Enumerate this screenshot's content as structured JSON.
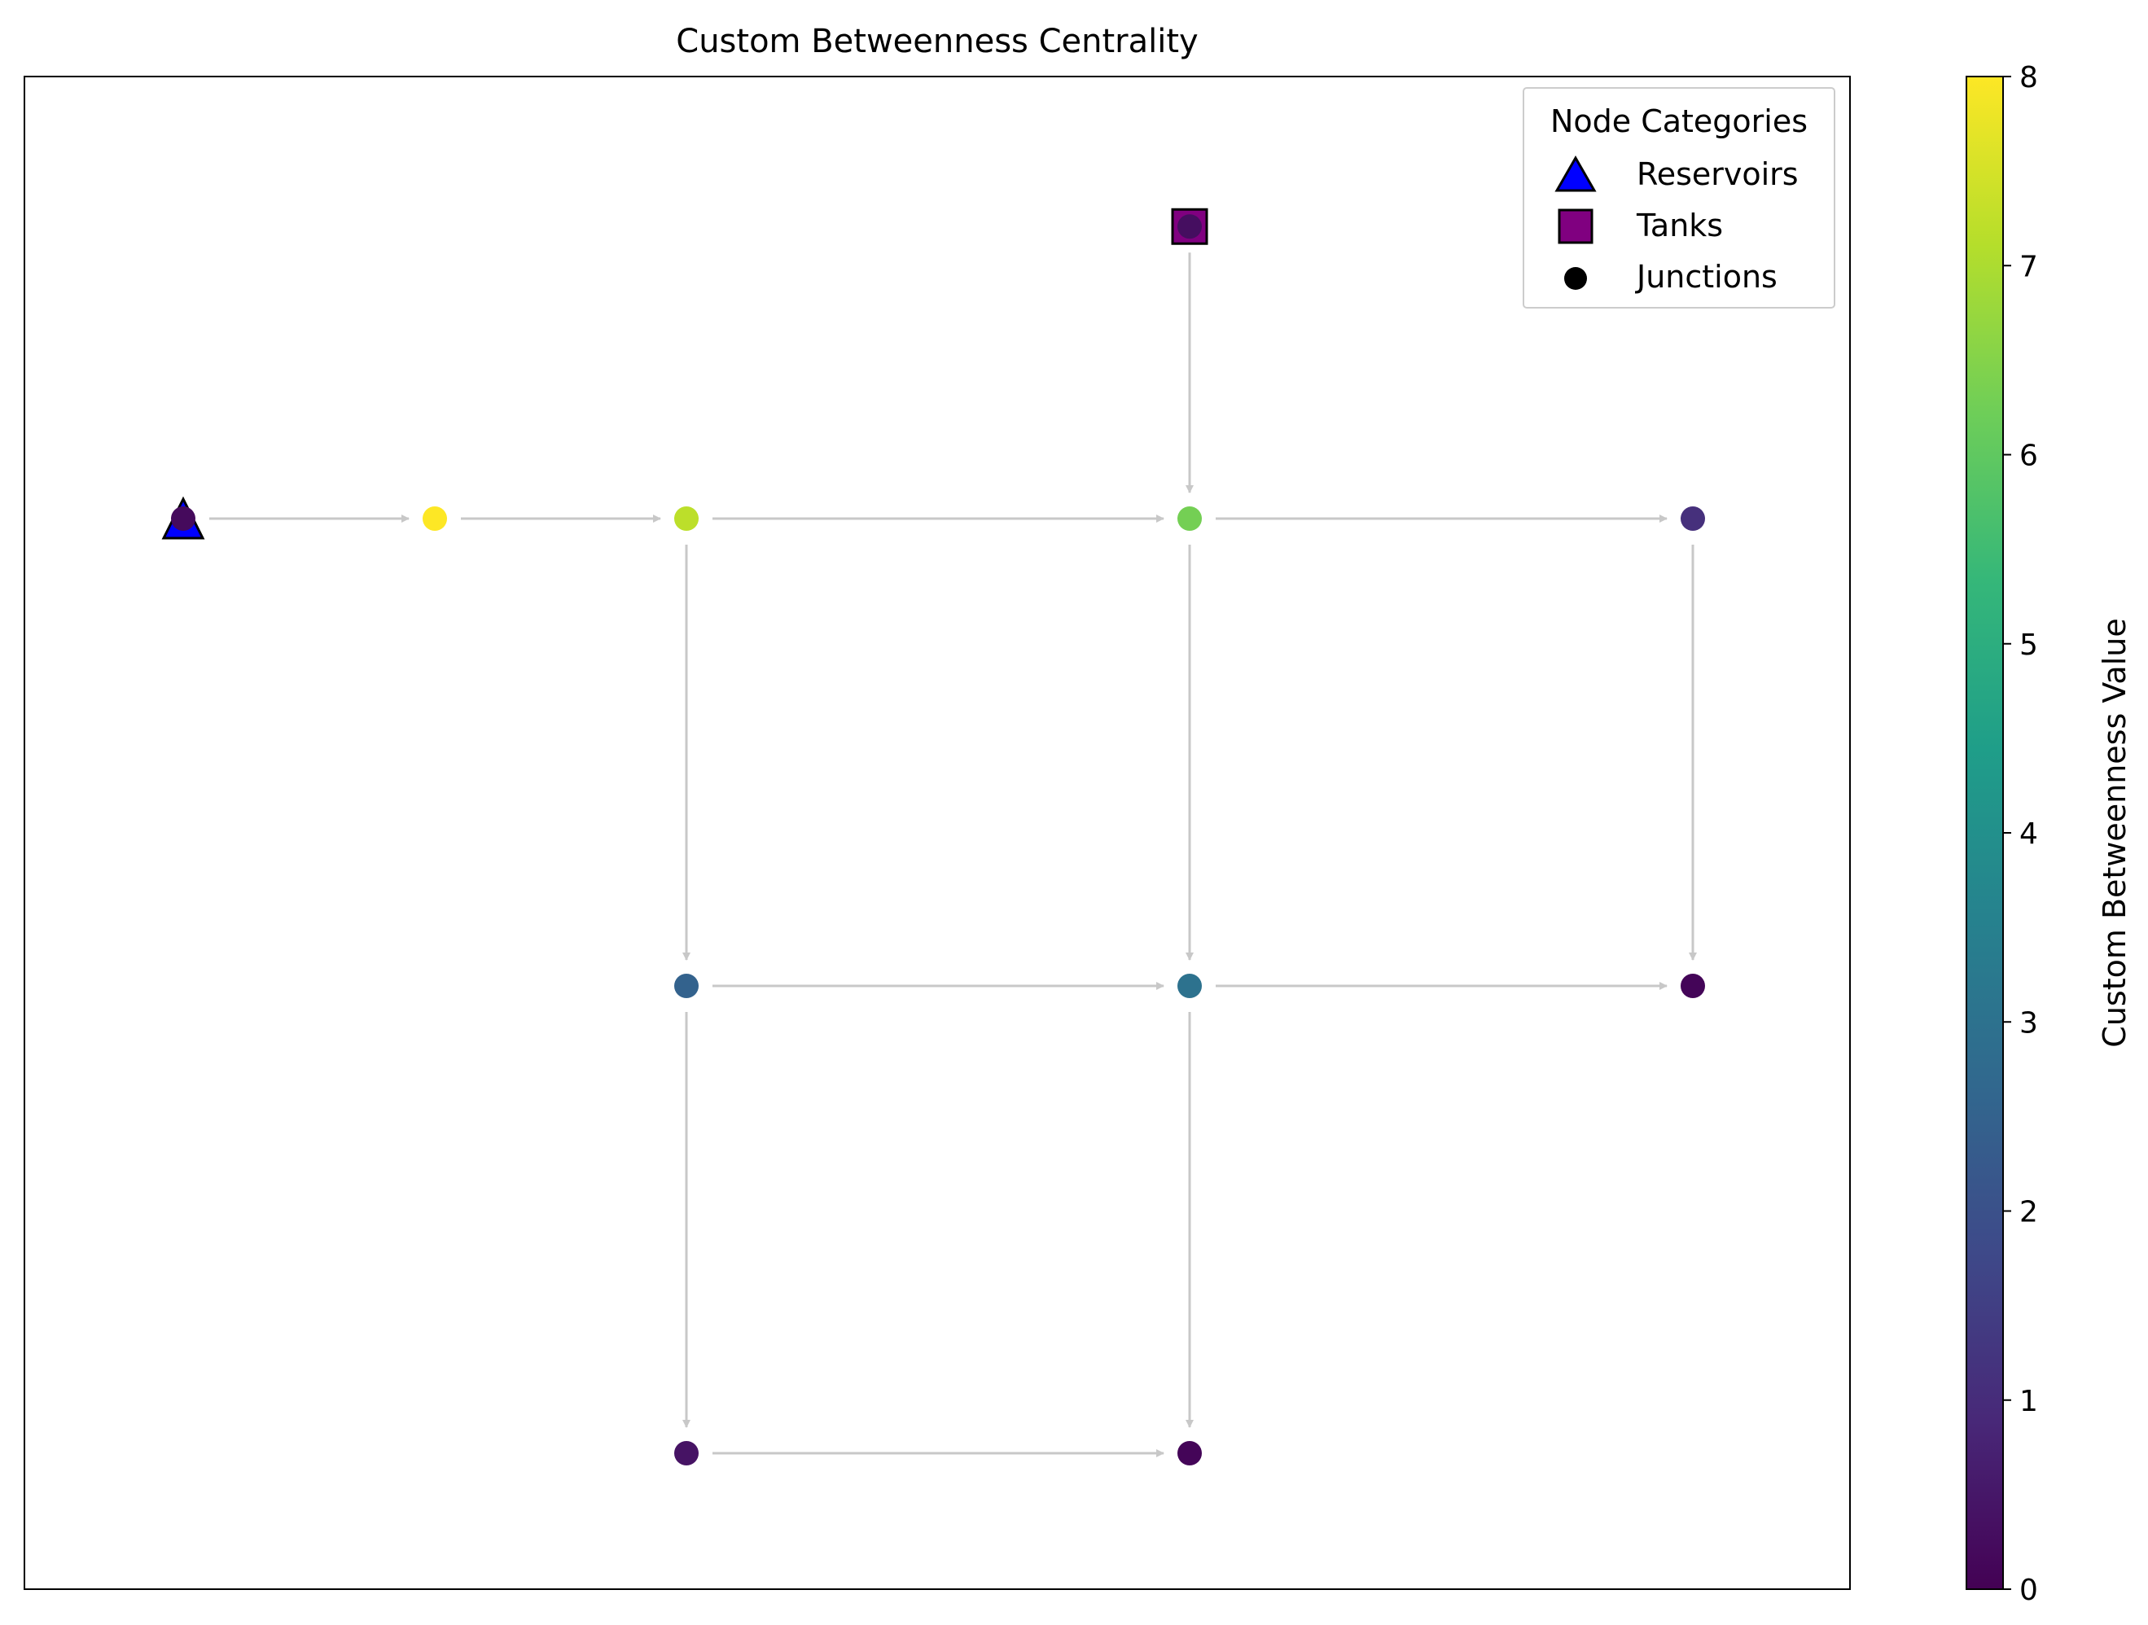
{
  "title": "Custom Betweenness Centrality",
  "colorbar": {
    "label": "Custom Betweenness Value",
    "min": 0,
    "max": 8,
    "ticks": [
      "0",
      "1",
      "2",
      "3",
      "4",
      "5",
      "6",
      "7",
      "8"
    ],
    "colormap": [
      "#440154",
      "#482878",
      "#3e4989",
      "#31688e",
      "#26828e",
      "#1f9e89",
      "#35b779",
      "#6ece58",
      "#b5de2b",
      "#fde725"
    ]
  },
  "legend": {
    "title": "Node Categories",
    "placement": "upper-right",
    "entries": [
      {
        "label": "Reservoirs",
        "marker": "triangle",
        "color": "#0000ff"
      },
      {
        "label": "Tanks",
        "marker": "square",
        "color": "#800080"
      },
      {
        "label": "Junctions",
        "marker": "circle",
        "color": "#000000"
      }
    ]
  },
  "edge_color": "#c8c8c8",
  "chart_data": {
    "type": "network",
    "nodes": [
      {
        "id": "R",
        "category": "Reservoir",
        "gx": 0,
        "gy": 2,
        "value": 0.2
      },
      {
        "id": "T",
        "category": "Tank",
        "gx": 4,
        "gy": 3.25,
        "value": 0.3
      },
      {
        "id": "A1",
        "category": "Junction",
        "gx": 1,
        "gy": 2,
        "value": 8
      },
      {
        "id": "A2",
        "category": "Junction",
        "gx": 2,
        "gy": 2,
        "value": 7.2
      },
      {
        "id": "A3",
        "category": "Junction",
        "gx": 4,
        "gy": 2,
        "value": 6.3
      },
      {
        "id": "A4",
        "category": "Junction",
        "gx": 6,
        "gy": 2,
        "value": 1.1
      },
      {
        "id": "B2",
        "category": "Junction",
        "gx": 2,
        "gy": 0,
        "value": 2.5
      },
      {
        "id": "B3",
        "category": "Junction",
        "gx": 4,
        "gy": 0,
        "value": 3.0
      },
      {
        "id": "B4",
        "category": "Junction",
        "gx": 6,
        "gy": 0,
        "value": 0.1
      },
      {
        "id": "C2",
        "category": "Junction",
        "gx": 2,
        "gy": -2,
        "value": 0.4
      },
      {
        "id": "C3",
        "category": "Junction",
        "gx": 4,
        "gy": -2,
        "value": 0.1
      }
    ],
    "edges": [
      [
        "R",
        "A1"
      ],
      [
        "A1",
        "A2"
      ],
      [
        "A2",
        "A3"
      ],
      [
        "A3",
        "A4"
      ],
      [
        "T",
        "A3"
      ],
      [
        "A2",
        "B2"
      ],
      [
        "A3",
        "B3"
      ],
      [
        "A4",
        "B4"
      ],
      [
        "B2",
        "B3"
      ],
      [
        "B3",
        "B4"
      ],
      [
        "B2",
        "C2"
      ],
      [
        "B3",
        "C3"
      ],
      [
        "C2",
        "C3"
      ]
    ]
  }
}
